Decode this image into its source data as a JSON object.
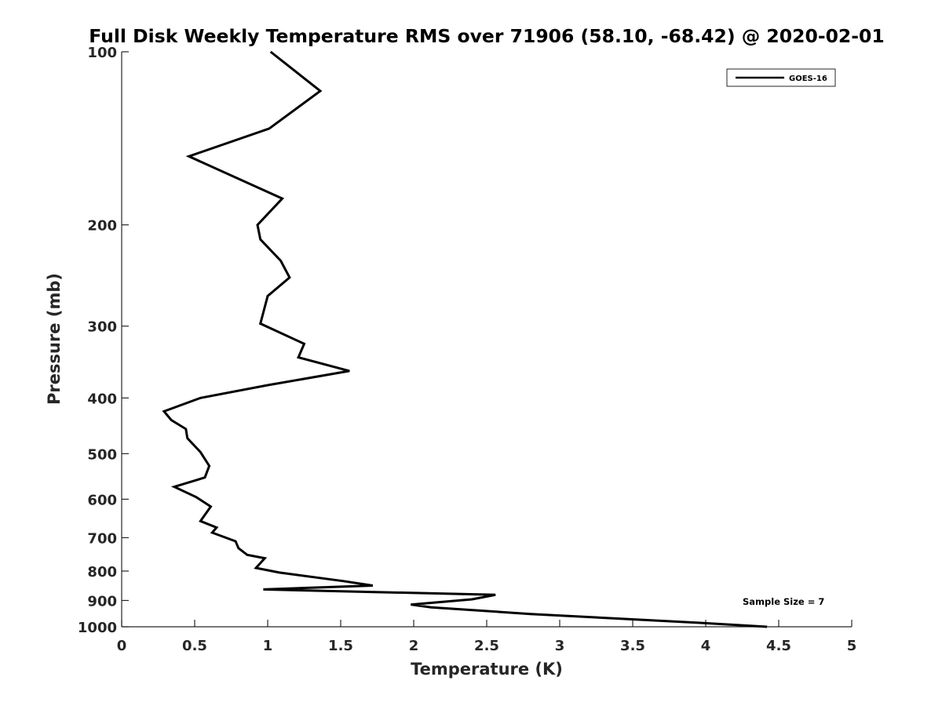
{
  "chart_data": {
    "type": "line",
    "title": "Full Disk Weekly Temperature RMS over 71906 (58.10, -68.42) @ 2020-02-01",
    "xlabel": "Temperature (K)",
    "ylabel": "Pressure (mb)",
    "xlim": [
      0,
      5
    ],
    "ylim": [
      100,
      1000
    ],
    "y_scale": "log",
    "y_reversed": true,
    "x_ticks": [
      "0",
      "0.5",
      "1",
      "1.5",
      "2",
      "2.5",
      "3",
      "3.5",
      "4",
      "4.5",
      "5"
    ],
    "y_ticks": [
      "100",
      "200",
      "300",
      "400",
      "500",
      "600",
      "700",
      "800",
      "900",
      "1000"
    ],
    "grid": false,
    "legend_position": "top-right",
    "annotation": "Sample Size = 7",
    "series": [
      {
        "name": "GOES-16",
        "color": "#000000",
        "points": [
          [
            1.02,
            100
          ],
          [
            1.36,
            117
          ],
          [
            1.01,
            136
          ],
          [
            0.46,
            152
          ],
          [
            1.1,
            180
          ],
          [
            0.93,
            200
          ],
          [
            0.95,
            212
          ],
          [
            1.09,
            231
          ],
          [
            1.15,
            247
          ],
          [
            1.0,
            266
          ],
          [
            0.95,
            297
          ],
          [
            1.25,
            322
          ],
          [
            1.21,
            340
          ],
          [
            1.56,
            359
          ],
          [
            1.0,
            380
          ],
          [
            0.54,
            400
          ],
          [
            0.29,
            422
          ],
          [
            0.34,
            437
          ],
          [
            0.44,
            453
          ],
          [
            0.45,
            470
          ],
          [
            0.54,
            497
          ],
          [
            0.6,
            525
          ],
          [
            0.57,
            550
          ],
          [
            0.36,
            571
          ],
          [
            0.51,
            595
          ],
          [
            0.61,
            618
          ],
          [
            0.54,
            655
          ],
          [
            0.65,
            672
          ],
          [
            0.62,
            686
          ],
          [
            0.78,
            710
          ],
          [
            0.8,
            730
          ],
          [
            0.86,
            750
          ],
          [
            0.98,
            760
          ],
          [
            0.92,
            790
          ],
          [
            1.08,
            805
          ],
          [
            1.52,
            833
          ],
          [
            1.72,
            848
          ],
          [
            1.25,
            856
          ],
          [
            0.97,
            861
          ],
          [
            2.56,
            880
          ],
          [
            2.4,
            896
          ],
          [
            1.98,
            915
          ],
          [
            2.12,
            925
          ],
          [
            2.8,
            950
          ],
          [
            3.95,
            984
          ],
          [
            4.42,
            1000
          ]
        ]
      }
    ]
  }
}
